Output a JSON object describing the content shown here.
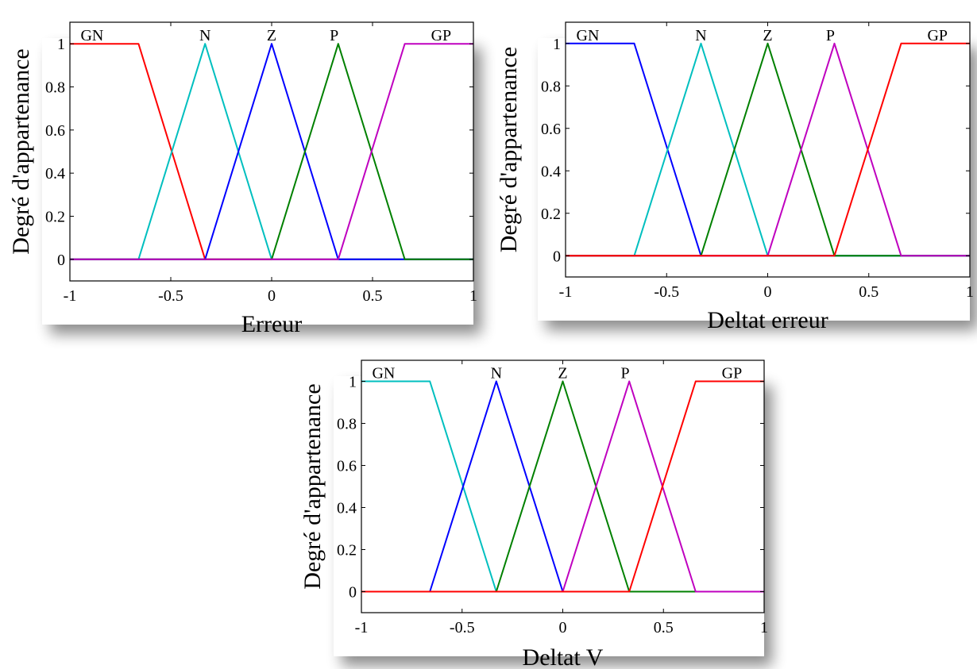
{
  "chart_data": [
    {
      "type": "line",
      "xlabel": "Erreur",
      "ylabel": "Degré d'appartenance",
      "xlim": [
        -1,
        1
      ],
      "ylim": [
        -0.1,
        1.1
      ],
      "xticks": [
        "-1",
        "-0.5",
        "0",
        "0.5",
        "1"
      ],
      "yticks": [
        "0",
        "0.2",
        "0.4",
        "0.6",
        "0.8",
        "1"
      ],
      "series": [
        {
          "name": "GN",
          "color": "#ff0000",
          "x": [
            -1,
            -0.66,
            -0.33,
            1
          ],
          "y": [
            1,
            1,
            0,
            0
          ],
          "label_x": -0.89
        },
        {
          "name": "N",
          "color": "#00bfbf",
          "x": [
            -1,
            -0.66,
            -0.33,
            0,
            1
          ],
          "y": [
            0,
            0,
            1,
            0,
            0
          ],
          "label_x": -0.33
        },
        {
          "name": "Z",
          "color": "#0000ff",
          "x": [
            -1,
            -0.33,
            0,
            0.33,
            1
          ],
          "y": [
            0,
            0,
            1,
            0,
            0
          ],
          "label_x": 0.0
        },
        {
          "name": "P",
          "color": "#008000",
          "x": [
            -1,
            0,
            0.33,
            0.66,
            1
          ],
          "y": [
            0,
            0,
            1,
            0,
            0
          ],
          "label_x": 0.31
        },
        {
          "name": "GP",
          "color": "#bf00bf",
          "x": [
            -1,
            0.33,
            0.66,
            1
          ],
          "y": [
            0,
            0,
            1,
            1
          ],
          "label_x": 0.84
        }
      ]
    },
    {
      "type": "line",
      "xlabel": "Deltat erreur",
      "ylabel": "Degré d'appartenance",
      "xlim": [
        -1,
        1
      ],
      "ylim": [
        -0.1,
        1.1
      ],
      "xticks": [
        "-1",
        "-0.5",
        "0",
        "0.5",
        "1"
      ],
      "yticks": [
        "0",
        "0.2",
        "0.4",
        "0.6",
        "0.8",
        "1"
      ],
      "series": [
        {
          "name": "GN",
          "color": "#0000ff",
          "x": [
            -1,
            -0.66,
            -0.33,
            1
          ],
          "y": [
            1,
            1,
            0,
            0
          ],
          "label_x": -0.89
        },
        {
          "name": "N",
          "color": "#00bfbf",
          "x": [
            -1,
            -0.66,
            -0.33,
            0,
            1
          ],
          "y": [
            0,
            0,
            1,
            0,
            0
          ],
          "label_x": -0.33
        },
        {
          "name": "Z",
          "color": "#008000",
          "x": [
            -1,
            -0.33,
            0,
            0.33,
            1
          ],
          "y": [
            0,
            0,
            1,
            0,
            0
          ],
          "label_x": 0.0
        },
        {
          "name": "P",
          "color": "#bf00bf",
          "x": [
            -1,
            0,
            0.33,
            0.66,
            1
          ],
          "y": [
            0,
            0,
            1,
            0,
            0
          ],
          "label_x": 0.31
        },
        {
          "name": "GP",
          "color": "#ff0000",
          "x": [
            -1,
            0.33,
            0.66,
            1
          ],
          "y": [
            0,
            0,
            1,
            1
          ],
          "label_x": 0.84
        }
      ]
    },
    {
      "type": "line",
      "xlabel": "Deltat V",
      "ylabel": "Degré d'appartenance",
      "xlim": [
        -1,
        1
      ],
      "ylim": [
        -0.1,
        1.1
      ],
      "xticks": [
        "-1",
        "-0.5",
        "0",
        "0.5",
        "1"
      ],
      "yticks": [
        "0",
        "0.2",
        "0.4",
        "0.6",
        "0.8",
        "1"
      ],
      "series": [
        {
          "name": "GN",
          "color": "#00bfbf",
          "x": [
            -1,
            -0.66,
            -0.33,
            1
          ],
          "y": [
            1,
            1,
            0,
            0
          ],
          "label_x": -0.89
        },
        {
          "name": "N",
          "color": "#0000ff",
          "x": [
            -1,
            -0.66,
            -0.33,
            0,
            1
          ],
          "y": [
            0,
            0,
            1,
            0,
            0
          ],
          "label_x": -0.33
        },
        {
          "name": "Z",
          "color": "#008000",
          "x": [
            -1,
            -0.33,
            0,
            0.33,
            1
          ],
          "y": [
            0,
            0,
            1,
            0,
            0
          ],
          "label_x": 0.0
        },
        {
          "name": "P",
          "color": "#bf00bf",
          "x": [
            -1,
            0,
            0.33,
            0.66,
            1
          ],
          "y": [
            0,
            0,
            1,
            0,
            0
          ],
          "label_x": 0.31
        },
        {
          "name": "GP",
          "color": "#ff0000",
          "x": [
            -1,
            0.33,
            0.66,
            1
          ],
          "y": [
            0,
            0,
            1,
            1
          ],
          "label_x": 0.84
        }
      ]
    }
  ]
}
